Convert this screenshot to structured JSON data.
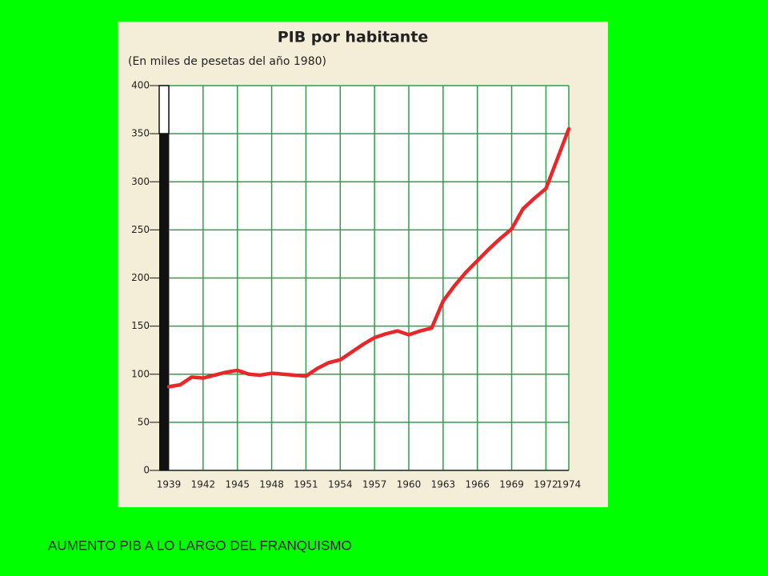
{
  "chart_data": {
    "type": "line",
    "title": "PIB por habitante",
    "subtitle": "(En miles de pesetas del año 1980)",
    "x": [
      1939,
      1940,
      1941,
      1942,
      1943,
      1944,
      1945,
      1946,
      1947,
      1948,
      1949,
      1950,
      1951,
      1952,
      1953,
      1954,
      1955,
      1956,
      1957,
      1958,
      1959,
      1960,
      1961,
      1962,
      1963,
      1964,
      1965,
      1966,
      1967,
      1968,
      1969,
      1970,
      1971,
      1972,
      1973,
      1974
    ],
    "series": [
      {
        "color": "#e8272a",
        "values": [
          87,
          89,
          97,
          96,
          99,
          102,
          104,
          100,
          99,
          101,
          100,
          99,
          98,
          106,
          112,
          115,
          123,
          131,
          138,
          142,
          145,
          141,
          145,
          148,
          176,
          192,
          206,
          218,
          230,
          241,
          251,
          272,
          283,
          293,
          324,
          355
        ]
      }
    ],
    "xlim": [
      1939,
      1974
    ],
    "xticks": [
      1939,
      1942,
      1945,
      1948,
      1951,
      1954,
      1957,
      1960,
      1963,
      1966,
      1969,
      1972,
      1974
    ],
    "ylim": [
      0,
      400
    ],
    "yticks": [
      0,
      50,
      100,
      150,
      200,
      250,
      300,
      350,
      400
    ],
    "grid": true,
    "grid_color": "#2e9e4e"
  },
  "caption": "AUMENTO PIB A LO LARGO DEL FRANQUISMO"
}
